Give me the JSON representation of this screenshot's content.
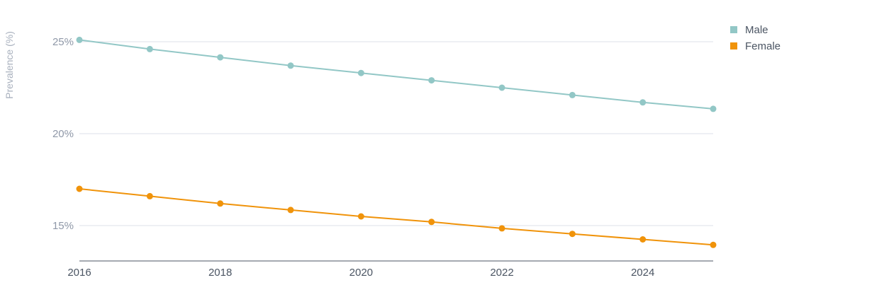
{
  "chart_data": {
    "type": "line",
    "title": "",
    "xlabel": "",
    "ylabel": "Prevalence (%)",
    "x": [
      2016,
      2017,
      2018,
      2019,
      2020,
      2021,
      2022,
      2023,
      2024,
      2025
    ],
    "xlim": [
      2016,
      2025
    ],
    "ylim": [
      13,
      26
    ],
    "x_ticks": [
      2016,
      2018,
      2020,
      2022,
      2024
    ],
    "y_ticks": [
      15,
      20,
      25
    ],
    "y_tick_labels": [
      "15%",
      "20%",
      "25%"
    ],
    "grid": "horizontal",
    "legend_position": "top-right",
    "series": [
      {
        "name": "Male",
        "color": "#92c7c6",
        "values": [
          25.1,
          24.6,
          24.15,
          23.7,
          23.3,
          22.9,
          22.5,
          22.1,
          21.7,
          21.35
        ]
      },
      {
        "name": "Female",
        "color": "#f0930a",
        "values": [
          17.0,
          16.6,
          16.2,
          15.85,
          15.5,
          15.2,
          14.85,
          14.55,
          14.25,
          13.95
        ]
      }
    ]
  }
}
